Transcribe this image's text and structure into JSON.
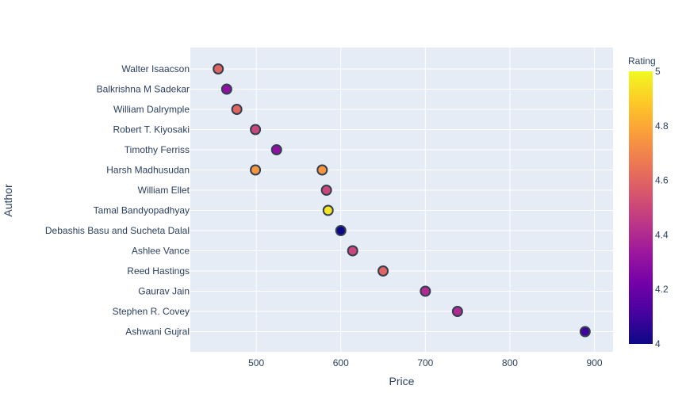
{
  "chart_data": {
    "type": "scatter",
    "xlabel": "Price",
    "ylabel": "Author",
    "xlim": [
      422,
      922
    ],
    "x_ticks": [
      500,
      600,
      700,
      800,
      900
    ],
    "grid": true,
    "categories": [
      "Walter Isaacson",
      "Balkrishna M Sadekar",
      "William Dalrymple",
      "Robert T. Kiyosaki",
      "Timothy Ferriss",
      "Harsh Madhusudan",
      "William Ellet",
      "Tamal Bandyopadhyay",
      "Debashis Basu and Sucheta Dalal",
      "Ashlee Vance",
      "Reed Hastings",
      "Gaurav Jain",
      "Stephen R. Covey",
      "Ashwani Gujral"
    ],
    "points": [
      {
        "author": "Walter Isaacson",
        "price": 455,
        "rating": 4.6
      },
      {
        "author": "Balkrishna M Sadekar",
        "price": 465,
        "rating": 4.3
      },
      {
        "author": "William Dalrymple",
        "price": 477,
        "rating": 4.6
      },
      {
        "author": "Robert T. Kiyosaki",
        "price": 499,
        "rating": 4.5
      },
      {
        "author": "Timothy Ferriss",
        "price": 524,
        "rating": 4.3
      },
      {
        "author": "Harsh Madhusudan",
        "price": 499,
        "rating": 4.75
      },
      {
        "author": "Harsh Madhusudan",
        "price": 578,
        "rating": 4.75
      },
      {
        "author": "William Ellet",
        "price": 583,
        "rating": 4.5
      },
      {
        "author": "Tamal Bandyopadhyay",
        "price": 585,
        "rating": 4.95
      },
      {
        "author": "Debashis Basu and Sucheta Dalal",
        "price": 600,
        "rating": 4.0
      },
      {
        "author": "Ashlee Vance",
        "price": 614,
        "rating": 4.5
      },
      {
        "author": "Reed Hastings",
        "price": 650,
        "rating": 4.6
      },
      {
        "author": "Gaurav Jain",
        "price": 700,
        "rating": 4.4
      },
      {
        "author": "Stephen R. Covey",
        "price": 738,
        "rating": 4.4
      },
      {
        "author": "Ashwani Gujral",
        "price": 889,
        "rating": 4.1
      }
    ],
    "colorbar": {
      "title": "Rating",
      "min": 4,
      "max": 5,
      "ticks": [
        {
          "value": 4,
          "label": "4"
        },
        {
          "value": 4.2,
          "label": "4.2"
        },
        {
          "value": 4.4,
          "label": "4.4"
        },
        {
          "value": 4.6,
          "label": "4.6"
        },
        {
          "value": 4.8,
          "label": "4.8"
        },
        {
          "value": 5,
          "label": "5"
        }
      ],
      "colorscale": [
        "#0d0887",
        "#46039f",
        "#7201a8",
        "#9c179e",
        "#bd3786",
        "#d8576b",
        "#ed7953",
        "#fb9f3a",
        "#fdca26",
        "#f0f921"
      ]
    },
    "colors": {
      "plot_bg": "#e5ecf6",
      "grid": "#ffffff",
      "text": "#2a3f5f",
      "marker_outline": "#333f4f"
    }
  }
}
